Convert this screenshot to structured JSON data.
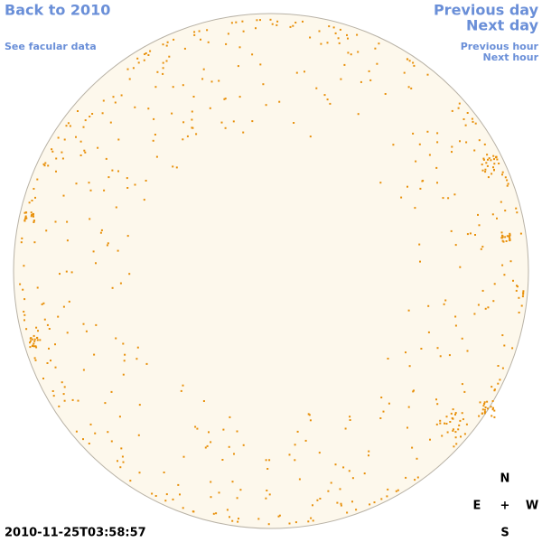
{
  "links": {
    "back": "Back to 2010",
    "facular": "See facular data",
    "previous_day": "Previous day",
    "next_day": "Next day",
    "previous_hour": "Previous hour",
    "next_hour": "Next hour"
  },
  "timestamp": "2010-11-25T03:58:57",
  "compass": {
    "north": "N",
    "east": "E",
    "center": "+",
    "west": "W",
    "south": "S"
  }
}
